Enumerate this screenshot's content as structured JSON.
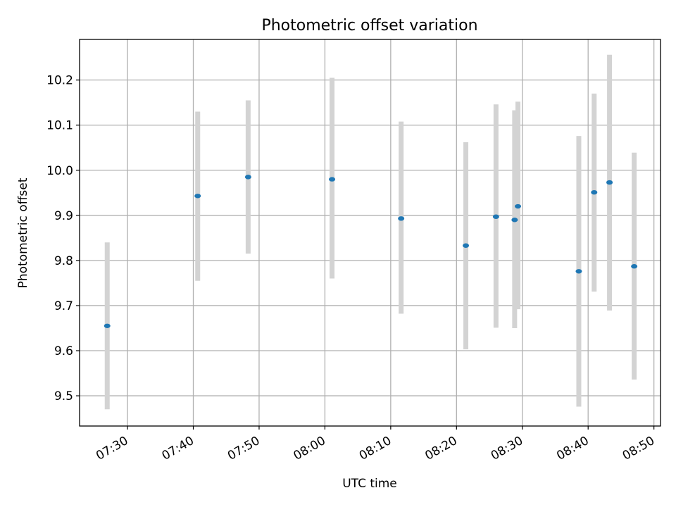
{
  "chart_data": {
    "type": "scatter",
    "title": "Photometric offset variation",
    "xlabel": "UTC time",
    "ylabel": "Photometric offset",
    "x_ticks": [
      "07:30",
      "07:40",
      "07:50",
      "08:00",
      "08:10",
      "08:20",
      "08:30",
      "08:40",
      "08:50"
    ],
    "y_ticks": [
      "9.5",
      "9.6",
      "9.7",
      "9.8",
      "9.9",
      "10.0",
      "10.1",
      "10.2"
    ],
    "xlim": [
      "07:22:43",
      "08:51:00"
    ],
    "ylim": [
      9.433,
      10.29
    ],
    "grid": true,
    "colors": {
      "point": "#1f77b4",
      "errorbar": "#d3d3d3",
      "grid": "#b0b0b0"
    },
    "points": [
      {
        "time": "07:26:55",
        "y": 9.655,
        "y_low": 9.47,
        "y_high": 9.84
      },
      {
        "time": "07:40:40",
        "y": 9.943,
        "y_low": 9.755,
        "y_high": 10.13
      },
      {
        "time": "07:48:20",
        "y": 9.985,
        "y_low": 9.815,
        "y_high": 10.155
      },
      {
        "time": "08:01:05",
        "y": 9.98,
        "y_low": 9.76,
        "y_high": 10.205
      },
      {
        "time": "08:11:35",
        "y": 9.893,
        "y_low": 9.682,
        "y_high": 10.108
      },
      {
        "time": "08:21:25",
        "y": 9.833,
        "y_low": 9.603,
        "y_high": 10.062
      },
      {
        "time": "08:26:00",
        "y": 9.897,
        "y_low": 9.651,
        "y_high": 10.146
      },
      {
        "time": "08:28:50",
        "y": 9.89,
        "y_low": 9.65,
        "y_high": 10.133
      },
      {
        "time": "08:29:20",
        "y": 9.92,
        "y_low": 9.692,
        "y_high": 10.152
      },
      {
        "time": "08:38:35",
        "y": 9.776,
        "y_low": 9.476,
        "y_high": 10.076
      },
      {
        "time": "08:40:55",
        "y": 9.951,
        "y_low": 9.731,
        "y_high": 10.17
      },
      {
        "time": "08:43:15",
        "y": 9.973,
        "y_low": 9.689,
        "y_high": 10.256
      },
      {
        "time": "08:47:00",
        "y": 9.787,
        "y_low": 9.536,
        "y_high": 10.039
      }
    ]
  }
}
